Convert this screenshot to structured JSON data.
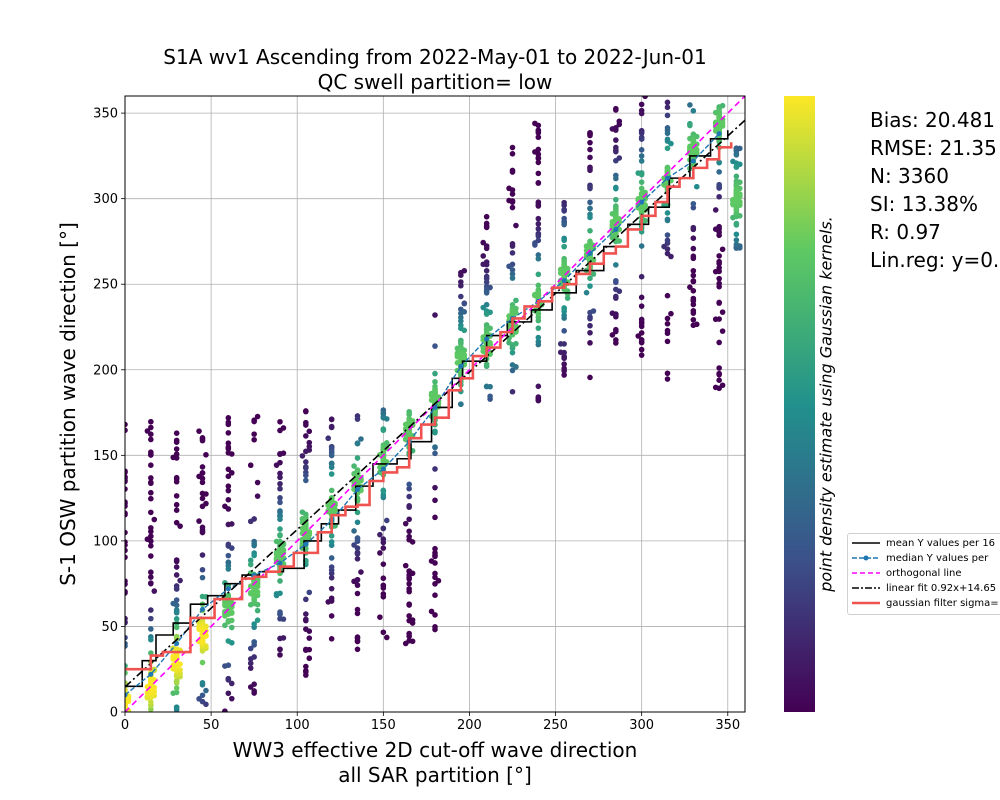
{
  "title": {
    "line1": "S1A wv1 Ascending from 2022-May-01 to 2022-Jun-01",
    "line2": "QC swell partition= low"
  },
  "stats": [
    "Bias: 20.481",
    "RMSE: 21.35",
    "N: 3360",
    "SI: 13.38%",
    "R: 0.97",
    "Lin.reg: y=0."
  ],
  "colorbar_label": "point density estimate using Gaussian kernels.",
  "legend": [
    {
      "label": "mean Y values per 16",
      "style": "solid",
      "color": "#000000"
    },
    {
      "label": "median Y values per",
      "style": "dashed-dot-marker",
      "color": "#1f77b4"
    },
    {
      "label": "orthogonal line",
      "style": "dashed",
      "color": "#ff00ff"
    },
    {
      "label": "linear fit 0.92x+14.65",
      "style": "dashdot",
      "color": "#000000"
    },
    {
      "label": "gaussian filter sigma=",
      "style": "thick",
      "color": "#ef5350"
    }
  ],
  "chart_data": {
    "type": "scatter",
    "title": "S1A wv1 Ascending from 2022-May-01 to 2022-Jun-01\nQC swell partition= low",
    "xlabel": "WW3 effective 2D cut-off wave direction\nall SAR partition [°]",
    "ylabel": "S-1 OSW partition wave direction [°]",
    "xlim": [
      0,
      360
    ],
    "ylim": [
      0,
      360
    ],
    "xticks": [
      0,
      50,
      100,
      150,
      200,
      250,
      300,
      350
    ],
    "yticks": [
      0,
      50,
      100,
      150,
      200,
      250,
      300,
      350
    ],
    "grid": true,
    "colormap": "viridis",
    "columns": [
      {
        "x": 0,
        "ymin": 0,
        "ymax": 171,
        "center": 5
      },
      {
        "x": 15,
        "ymin": 0,
        "ymax": 170,
        "center": 15
      },
      {
        "x": 30,
        "ymin": 0,
        "ymax": 166,
        "center": 30
      },
      {
        "x": 45,
        "ymin": 0,
        "ymax": 170,
        "center": 45
      },
      {
        "x": 60,
        "ymin": 0,
        "ymax": 172,
        "center": 60
      },
      {
        "x": 75,
        "ymin": 10,
        "ymax": 180,
        "center": 72
      },
      {
        "x": 90,
        "ymin": 30,
        "ymax": 170,
        "center": 90
      },
      {
        "x": 105,
        "ymin": 20,
        "ymax": 176,
        "center": 105
      },
      {
        "x": 120,
        "ymin": 40,
        "ymax": 176,
        "center": 120
      },
      {
        "x": 135,
        "ymin": 36,
        "ymax": 180,
        "center": 133
      },
      {
        "x": 150,
        "ymin": 40,
        "ymax": 180,
        "center": 148
      },
      {
        "x": 165,
        "ymin": 35,
        "ymax": 180,
        "center": 165
      },
      {
        "x": 180,
        "ymin": 45,
        "ymax": 240,
        "center": 182
      },
      {
        "x": 195,
        "ymin": 178,
        "ymax": 258,
        "center": 205
      },
      {
        "x": 210,
        "ymin": 178,
        "ymax": 293,
        "center": 215
      },
      {
        "x": 225,
        "ymin": 180,
        "ymax": 330,
        "center": 228
      },
      {
        "x": 240,
        "ymin": 180,
        "ymax": 345,
        "center": 240
      },
      {
        "x": 255,
        "ymin": 195,
        "ymax": 300,
        "center": 255
      },
      {
        "x": 270,
        "ymin": 195,
        "ymax": 360,
        "center": 268
      },
      {
        "x": 285,
        "ymin": 215,
        "ymax": 360,
        "center": 285
      },
      {
        "x": 300,
        "ymin": 205,
        "ymax": 360,
        "center": 298
      },
      {
        "x": 315,
        "ymin": 188,
        "ymax": 360,
        "center": 312
      },
      {
        "x": 330,
        "ymin": 225,
        "ymax": 360,
        "center": 328
      },
      {
        "x": 345,
        "ymin": 180,
        "ymax": 360,
        "center": 343
      },
      {
        "x": 355,
        "ymin": 270,
        "ymax": 330,
        "center": 300
      }
    ],
    "series": [
      {
        "name": "mean Y values per 16",
        "x": [
          0,
          10,
          18,
          28,
          38,
          48,
          58,
          68,
          78,
          92,
          104,
          114,
          124,
          134,
          144,
          158,
          166,
          178,
          190,
          196,
          210,
          222,
          236,
          248,
          262,
          278,
          292,
          304,
          316,
          328,
          340,
          350
        ],
        "y": [
          15,
          30,
          45,
          52,
          63,
          68,
          75,
          80,
          82,
          84,
          100,
          110,
          118,
          132,
          145,
          148,
          158,
          178,
          195,
          205,
          220,
          228,
          235,
          245,
          258,
          272,
          285,
          295,
          312,
          325,
          335,
          340
        ]
      },
      {
        "name": "median Y values per",
        "x": [
          0,
          15,
          30,
          45,
          60,
          75,
          90,
          105,
          120,
          135,
          150,
          165,
          180,
          195,
          210,
          225,
          240,
          255,
          270,
          285,
          300,
          315,
          330,
          345
        ],
        "y": [
          10,
          22,
          40,
          60,
          72,
          80,
          87,
          98,
          112,
          130,
          142,
          158,
          178,
          202,
          218,
          230,
          240,
          252,
          268,
          282,
          298,
          312,
          322,
          338
        ]
      },
      {
        "name": "orthogonal line",
        "x": [
          0,
          360
        ],
        "y": [
          0,
          360
        ]
      },
      {
        "name": "linear fit 0.92x+14.65",
        "x": [
          0,
          360
        ],
        "y": [
          14.65,
          345.85
        ]
      },
      {
        "name": "gaussian filter sigma=",
        "x": [
          0,
          8,
          15,
          22,
          30,
          38,
          45,
          52,
          60,
          68,
          75,
          82,
          90,
          98,
          105,
          112,
          120,
          128,
          135,
          142,
          150,
          158,
          165,
          172,
          180,
          188,
          195,
          202,
          210,
          218,
          225,
          232,
          240,
          248,
          255,
          262,
          270,
          278,
          285,
          292,
          300,
          308,
          315,
          322,
          330,
          338,
          345,
          352
        ],
        "y": [
          25,
          25,
          33,
          35,
          35,
          55,
          55,
          66,
          66,
          78,
          79,
          82,
          85,
          93,
          93,
          105,
          115,
          120,
          121,
          135,
          140,
          143,
          160,
          168,
          172,
          188,
          195,
          208,
          213,
          222,
          230,
          237,
          240,
          248,
          250,
          256,
          262,
          268,
          272,
          282,
          290,
          298,
          307,
          312,
          318,
          323,
          330,
          333
        ]
      }
    ]
  }
}
